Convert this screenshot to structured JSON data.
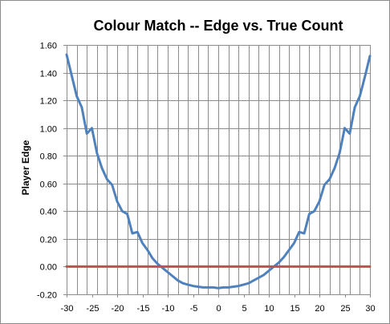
{
  "chart_data": {
    "type": "line",
    "title": "Colour Match -- Edge vs. True Count",
    "xlabel": "",
    "ylabel": "Player Edge",
    "xlim": [
      -30,
      30
    ],
    "ylim": [
      -0.2,
      1.6
    ],
    "x_ticks": [
      -30,
      -25,
      -20,
      -15,
      -10,
      -5,
      0,
      5,
      10,
      15,
      20,
      25,
      30
    ],
    "y_ticks": [
      "-0.20",
      "0.00",
      "0.20",
      "0.40",
      "0.60",
      "0.80",
      "1.00",
      "1.20",
      "1.40",
      "1.60"
    ],
    "grid": true,
    "legend": "none",
    "series": [
      {
        "color": "#4f81bd",
        "x": [
          -30,
          -29,
          -28,
          -27,
          -26,
          -25,
          -24,
          -23,
          -22,
          -21,
          -20,
          -19,
          -18,
          -17,
          -16,
          -15,
          -14,
          -13,
          -12,
          -11,
          -10,
          -9,
          -8,
          -7,
          -6,
          -5,
          -4,
          -3,
          -2,
          -1,
          0,
          1,
          2,
          3,
          4,
          5,
          6,
          7,
          8,
          9,
          10,
          11,
          12,
          13,
          14,
          15,
          16,
          17,
          18,
          19,
          20,
          21,
          22,
          23,
          24,
          25,
          26,
          27,
          28,
          29,
          30
        ],
        "y": [
          1.53,
          1.38,
          1.23,
          1.15,
          0.96,
          1.0,
          0.82,
          0.71,
          0.63,
          0.59,
          0.47,
          0.4,
          0.38,
          0.24,
          0.25,
          0.17,
          0.12,
          0.06,
          0.02,
          -0.01,
          -0.04,
          -0.07,
          -0.1,
          -0.12,
          -0.13,
          -0.14,
          -0.145,
          -0.15,
          -0.15,
          -0.15,
          -0.155,
          -0.15,
          -0.15,
          -0.145,
          -0.14,
          -0.13,
          -0.12,
          -0.1,
          -0.08,
          -0.06,
          -0.03,
          0.0,
          0.03,
          0.07,
          0.12,
          0.17,
          0.25,
          0.24,
          0.38,
          0.4,
          0.47,
          0.59,
          0.63,
          0.71,
          0.82,
          1.0,
          0.96,
          1.15,
          1.23,
          1.37,
          1.52
        ]
      },
      {
        "color": "#c0504d",
        "x": [
          -30,
          30
        ],
        "y": [
          0.0,
          0.0
        ]
      }
    ]
  }
}
